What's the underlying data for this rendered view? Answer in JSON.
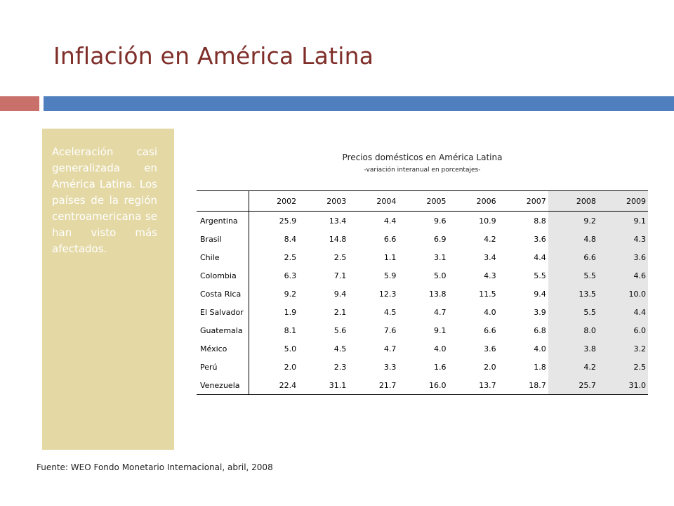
{
  "slide": {
    "title": "Inflación en América Latina",
    "sidebar_text": "Aceleración casi generalizada en América Latina. Los países de la región centroamericana se han visto más afectados.",
    "source": "Fuente: WEO Fondo Monetario Internacional, abril, 2008"
  },
  "colors": {
    "title": "#7f2f2a",
    "accent_red": "#c9706b",
    "accent_blue": "#4f7fbe",
    "sidebar_bg": "#e4d8a5",
    "highlight_column": "#e6e6e6"
  },
  "table": {
    "title": "Precios domésticos en América Latina",
    "subtitle": "-variación interanual en porcentajes-",
    "headers": [
      "2002",
      "2003",
      "2004",
      "2005",
      "2006",
      "2007",
      "2008",
      "2009"
    ],
    "highlighted_years": [
      "2008",
      "2009"
    ],
    "rows": [
      {
        "country": "Argentina",
        "values": [
          "25.9",
          "13.4",
          "4.4",
          "9.6",
          "10.9",
          "8.8",
          "9.2",
          "9.1"
        ]
      },
      {
        "country": "Brasil",
        "values": [
          "8.4",
          "14.8",
          "6.6",
          "6.9",
          "4.2",
          "3.6",
          "4.8",
          "4.3"
        ]
      },
      {
        "country": "Chile",
        "values": [
          "2.5",
          "2.5",
          "1.1",
          "3.1",
          "3.4",
          "4.4",
          "6.6",
          "3.6"
        ]
      },
      {
        "country": "Colombia",
        "values": [
          "6.3",
          "7.1",
          "5.9",
          "5.0",
          "4.3",
          "5.5",
          "5.5",
          "4.6"
        ]
      },
      {
        "country": "Costa Rica",
        "values": [
          "9.2",
          "9.4",
          "12.3",
          "13.8",
          "11.5",
          "9.4",
          "13.5",
          "10.0"
        ]
      },
      {
        "country": "El Salvador",
        "values": [
          "1.9",
          "2.1",
          "4.5",
          "4.7",
          "4.0",
          "3.9",
          "5.5",
          "4.4"
        ]
      },
      {
        "country": "Guatemala",
        "values": [
          "8.1",
          "5.6",
          "7.6",
          "9.1",
          "6.6",
          "6.8",
          "8.0",
          "6.0"
        ]
      },
      {
        "country": "México",
        "values": [
          "5.0",
          "4.5",
          "4.7",
          "4.0",
          "3.6",
          "4.0",
          "3.8",
          "3.2"
        ]
      },
      {
        "country": "Perú",
        "values": [
          "2.0",
          "2.3",
          "3.3",
          "1.6",
          "2.0",
          "1.8",
          "4.2",
          "2.5"
        ]
      },
      {
        "country": "Venezuela",
        "values": [
          "22.4",
          "31.1",
          "21.7",
          "16.0",
          "13.7",
          "18.7",
          "25.7",
          "31.0"
        ]
      }
    ]
  }
}
